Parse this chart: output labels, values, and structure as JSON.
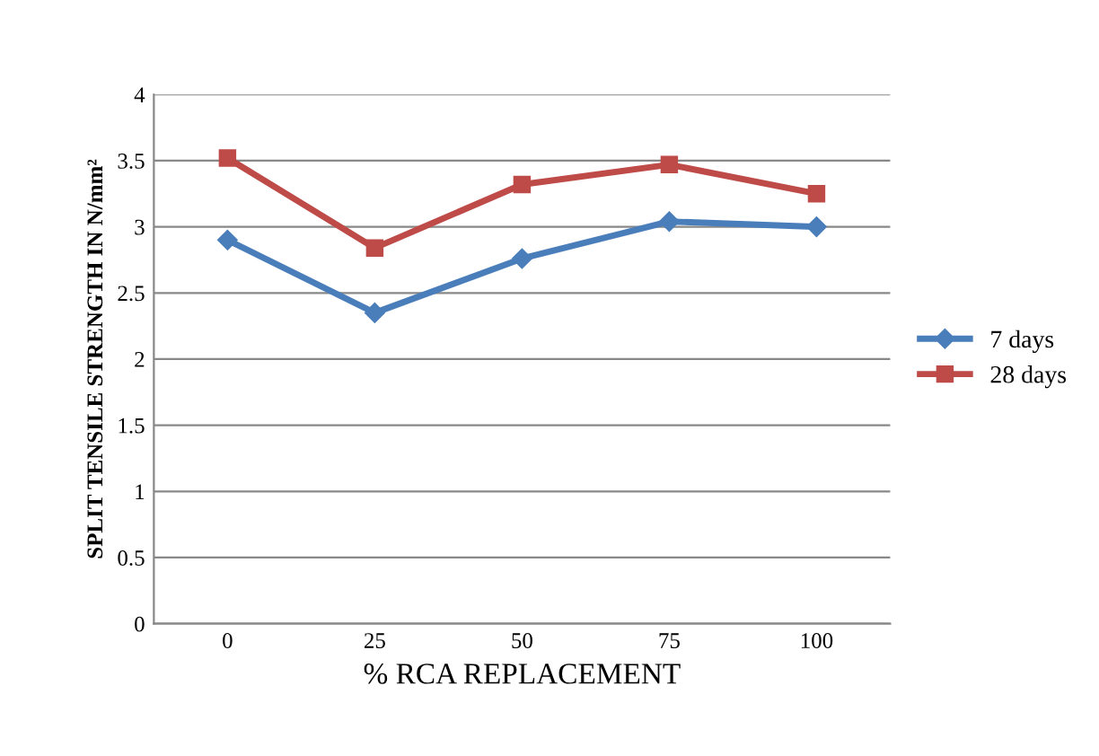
{
  "chart_data": {
    "type": "line",
    "xlabel": "% RCA REPLACEMENT",
    "ylabel": "SPLIT TENSILE STRENGTH IN N/mm²",
    "categories": [
      "0",
      "25",
      "50",
      "75",
      "100"
    ],
    "series": [
      {
        "name": "7 days",
        "color": "#4a7ebb",
        "marker": "diamond",
        "values": [
          2.9,
          2.35,
          2.76,
          3.04,
          3.0
        ]
      },
      {
        "name": "28 days",
        "color": "#be4b48",
        "marker": "square",
        "values": [
          3.52,
          2.84,
          3.32,
          3.47,
          3.25
        ]
      }
    ],
    "ylim": [
      0,
      4
    ],
    "yticks": [
      0,
      0.5,
      1,
      1.5,
      2,
      2.5,
      3,
      3.5,
      4
    ],
    "grid": "y",
    "legend": "right",
    "line_style": "solid"
  }
}
